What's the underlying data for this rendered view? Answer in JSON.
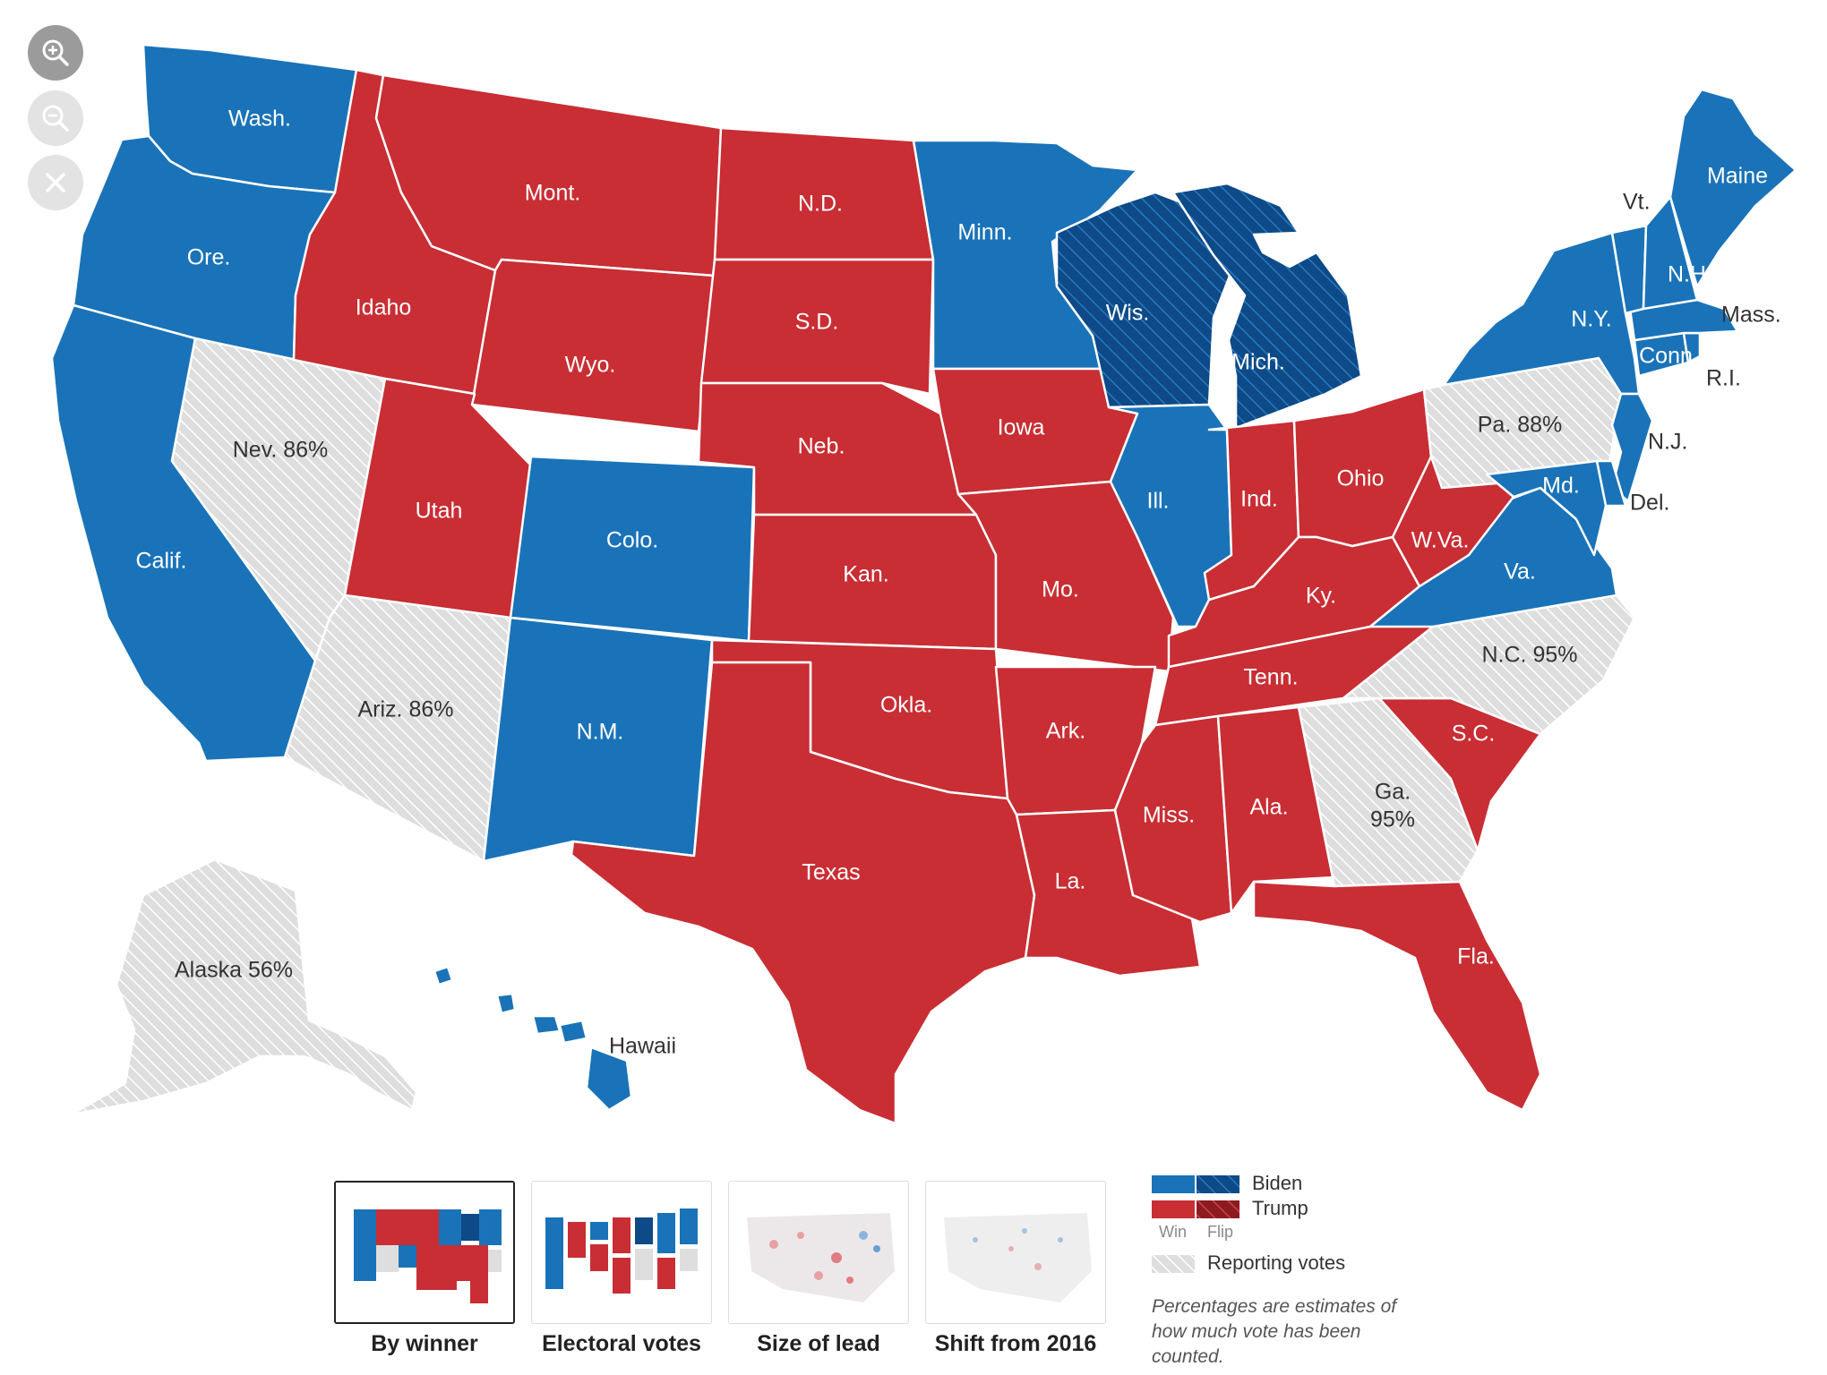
{
  "colors": {
    "biden": "#1a73b8",
    "biden_flip": "#0d4a87",
    "trump": "#c82e34",
    "trump_flip": "#8e1b22",
    "reporting": "#dedede",
    "reporting_hatch": "#ffffff"
  },
  "controls": {
    "zoom_in_icon": "zoom-in-icon",
    "zoom_out_icon": "zoom-out-icon",
    "reset_icon": "close-icon"
  },
  "states": {
    "wash": {
      "label": "Wash.",
      "winner": "biden"
    },
    "ore": {
      "label": "Ore.",
      "winner": "biden"
    },
    "calif": {
      "label": "Calif.",
      "winner": "biden"
    },
    "nev": {
      "label": "Nev. 86%",
      "winner": "reporting"
    },
    "idaho": {
      "label": "Idaho",
      "winner": "trump"
    },
    "mont": {
      "label": "Mont.",
      "winner": "trump"
    },
    "wyo": {
      "label": "Wyo.",
      "winner": "trump"
    },
    "utah": {
      "label": "Utah",
      "winner": "trump"
    },
    "ariz": {
      "label": "Ariz. 86%",
      "winner": "reporting"
    },
    "colo": {
      "label": "Colo.",
      "winner": "biden"
    },
    "nm": {
      "label": "N.M.",
      "winner": "biden"
    },
    "nd": {
      "label": "N.D.",
      "winner": "trump"
    },
    "sd": {
      "label": "S.D.",
      "winner": "trump"
    },
    "neb": {
      "label": "Neb.",
      "winner": "trump"
    },
    "kan": {
      "label": "Kan.",
      "winner": "trump"
    },
    "okla": {
      "label": "Okla.",
      "winner": "trump"
    },
    "texas": {
      "label": "Texas",
      "winner": "trump"
    },
    "minn": {
      "label": "Minn.",
      "winner": "biden"
    },
    "iowa": {
      "label": "Iowa",
      "winner": "trump"
    },
    "mo": {
      "label": "Mo.",
      "winner": "trump"
    },
    "ark": {
      "label": "Ark.",
      "winner": "trump"
    },
    "la": {
      "label": "La.",
      "winner": "trump"
    },
    "wis": {
      "label": "Wis.",
      "winner": "biden_flip"
    },
    "mich": {
      "label": "Mich.",
      "winner": "biden_flip"
    },
    "ill": {
      "label": "Ill.",
      "winner": "biden"
    },
    "ind": {
      "label": "Ind.",
      "winner": "trump"
    },
    "ohio": {
      "label": "Ohio",
      "winner": "trump"
    },
    "ky": {
      "label": "Ky.",
      "winner": "trump"
    },
    "tenn": {
      "label": "Tenn.",
      "winner": "trump"
    },
    "miss": {
      "label": "Miss.",
      "winner": "trump"
    },
    "ala": {
      "label": "Ala.",
      "winner": "trump"
    },
    "ga": {
      "label": "Ga.",
      "label2": "95%",
      "winner": "reporting"
    },
    "fla": {
      "label": "Fla.",
      "winner": "trump"
    },
    "sc": {
      "label": "S.C.",
      "winner": "trump"
    },
    "nc": {
      "label": "N.C. 95%",
      "winner": "reporting"
    },
    "va": {
      "label": "Va.",
      "winner": "biden"
    },
    "wva": {
      "label": "W.Va.",
      "winner": "trump"
    },
    "pa": {
      "label": "Pa. 88%",
      "winner": "reporting"
    },
    "ny": {
      "label": "N.Y.",
      "winner": "biden"
    },
    "nj": {
      "label": "N.J.",
      "winner": "biden"
    },
    "del": {
      "label": "Del.",
      "winner": "biden"
    },
    "md": {
      "label": "Md.",
      "winner": "biden"
    },
    "conn": {
      "label": "Conn",
      "winner": "biden"
    },
    "ri": {
      "label": "R.I.",
      "winner": "biden"
    },
    "mass": {
      "label": "Mass.",
      "winner": "biden"
    },
    "vt": {
      "label": "Vt.",
      "winner": "biden"
    },
    "nh": {
      "label": "N.H.",
      "winner": "biden"
    },
    "maine": {
      "label": "Maine",
      "winner": "biden"
    },
    "alaska": {
      "label": "Alaska 56%",
      "winner": "reporting"
    },
    "hawaii": {
      "label": "Hawaii",
      "winner": "biden"
    }
  },
  "map_types": [
    {
      "label": "By winner",
      "active": true
    },
    {
      "label": "Electoral votes",
      "active": false
    },
    {
      "label": "Size of lead",
      "active": false
    },
    {
      "label": "Shift from 2016",
      "active": false
    }
  ],
  "legend": {
    "biden": "Biden",
    "trump": "Trump",
    "win": "Win",
    "flip": "Flip",
    "reporting": "Reporting votes",
    "note": "Percentages are estimates of how much vote has been counted."
  }
}
